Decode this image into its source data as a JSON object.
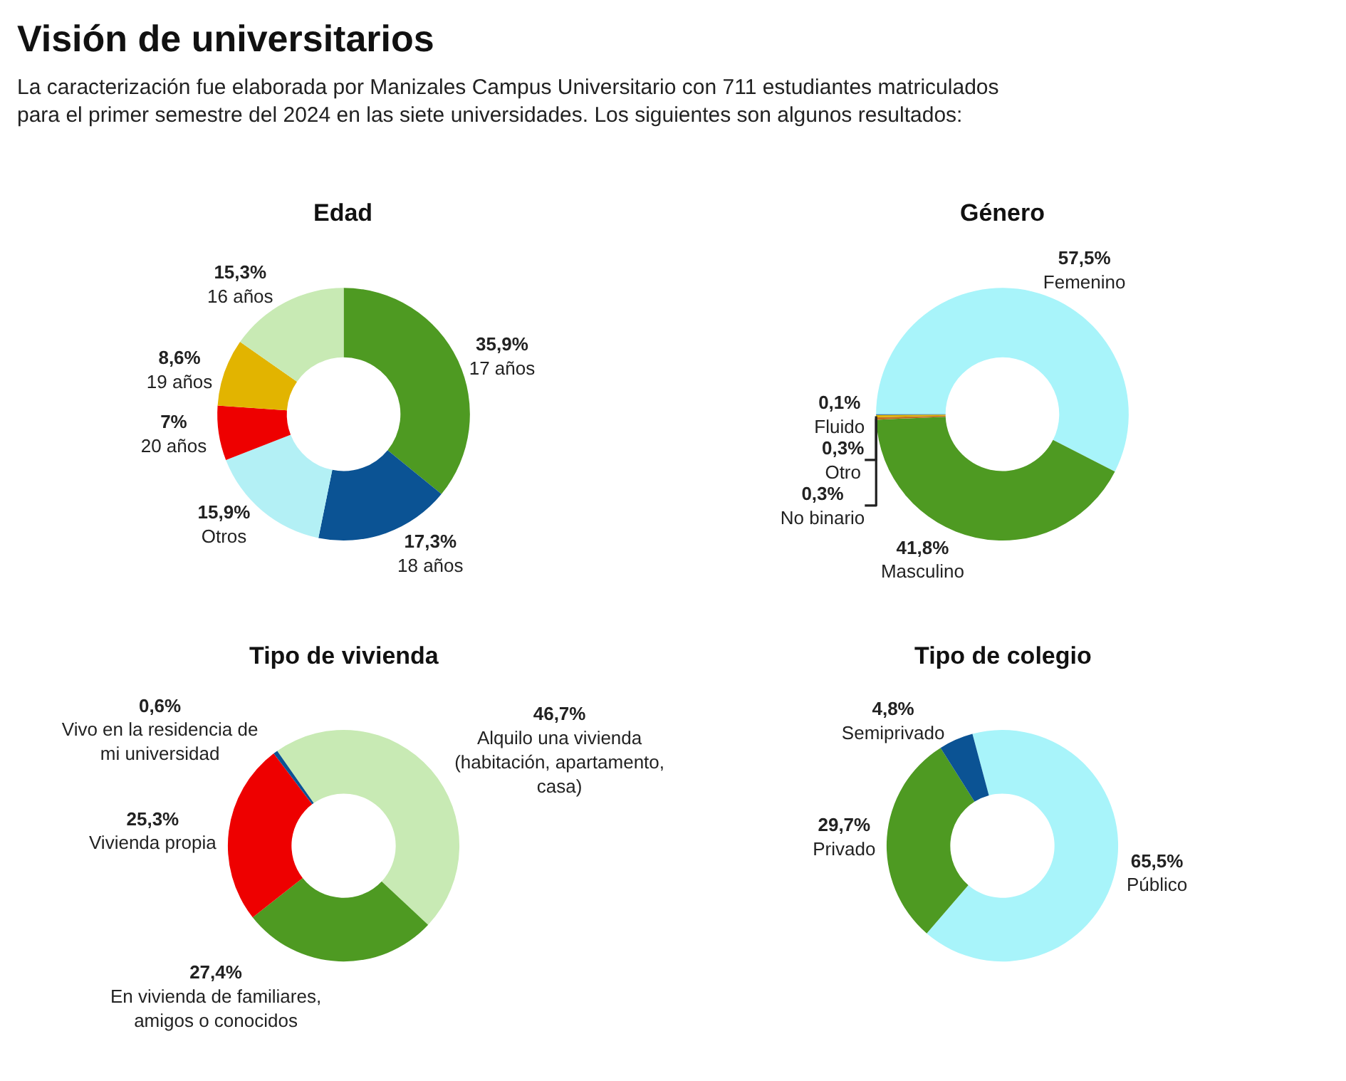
{
  "chart_data": [
    {
      "type": "other",
      "title": "Visión de universitarios",
      "subtitle": "La caracterización fue elaborada por Manizales Campus Universitario con 711 estudiantes matriculados para el primer semestre del 2024 en las siete universidades. Los siguientes son algunos resultados:"
    },
    {
      "type": "donut",
      "title": "Edad",
      "categories": [
        "17 años",
        "18 años",
        "Otros",
        "20 años",
        "19 años",
        "16 años"
      ],
      "values": [
        35.9,
        17.3,
        15.9,
        7,
        8.6,
        15.3
      ],
      "value_labels": [
        "35,9%",
        "17,3%",
        "15,9%",
        "7%",
        "8,6%",
        "15,3%"
      ],
      "colors": [
        "#4e9a22",
        "#0b5394",
        "#b3f0f5",
        "#ee0000",
        "#e2b400",
        "#c8eab4"
      ],
      "legend": false
    },
    {
      "type": "donut",
      "title": "Género",
      "categories": [
        "Femenino",
        "Masculino",
        "No binario",
        "Otro",
        "Fluido"
      ],
      "values": [
        57.5,
        41.8,
        0.3,
        0.3,
        0.1
      ],
      "value_labels": [
        "57,5%",
        "41,8%",
        "0,3%",
        "0,3%",
        "0,1%"
      ],
      "colors": [
        "#a8f4fa",
        "#4e9a22",
        "#c07020",
        "#e2b400",
        "#0b5394"
      ],
      "legend": false
    },
    {
      "type": "donut",
      "title": "Tipo de vivienda",
      "categories": [
        "Alquilo una vivienda (habitación, apartamento, casa)",
        "En vivienda de familiares, amigos o conocidos",
        "Vivienda propia",
        "Vivo en la residencia de mi universidad"
      ],
      "values": [
        46.7,
        27.4,
        25.3,
        0.6
      ],
      "value_labels": [
        "46,7%",
        "27,4%",
        "25,3%",
        "0,6%"
      ],
      "colors": [
        "#c8eab4",
        "#4e9a22",
        "#ee0000",
        "#0b5394"
      ],
      "legend": false
    },
    {
      "type": "donut",
      "title": "Tipo de colegio",
      "categories": [
        "Público",
        "Privado",
        "Semiprivado"
      ],
      "values": [
        65.5,
        29.7,
        4.8
      ],
      "value_labels": [
        "65,5%",
        "29,7%",
        "4,8%"
      ],
      "colors": [
        "#a8f4fa",
        "#4e9a22",
        "#0b5394"
      ],
      "legend": false
    }
  ]
}
